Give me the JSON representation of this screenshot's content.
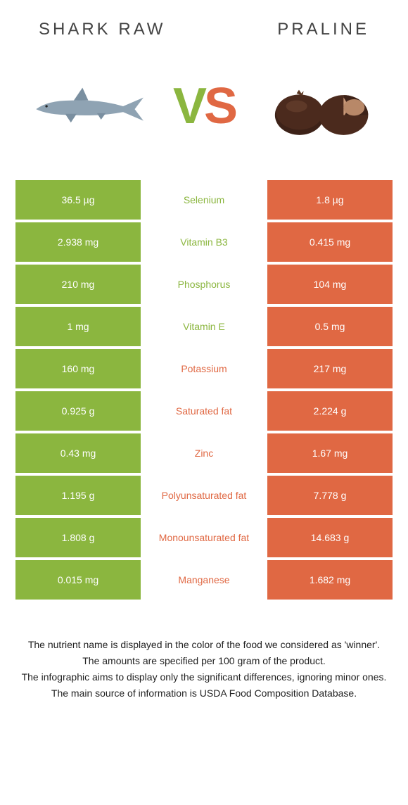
{
  "header": {
    "left_title": "SHARK RAW",
    "right_title": "PRALINE"
  },
  "vs": {
    "v": "V",
    "s": "S"
  },
  "colors": {
    "green": "#8bb63f",
    "orange": "#e06843",
    "text_dark": "#444444"
  },
  "rows": [
    {
      "left": "36.5 µg",
      "mid": "Selenium",
      "right": "1.8 µg",
      "winner": "left"
    },
    {
      "left": "2.938 mg",
      "mid": "Vitamin B3",
      "right": "0.415 mg",
      "winner": "left"
    },
    {
      "left": "210 mg",
      "mid": "Phosphorus",
      "right": "104 mg",
      "winner": "left"
    },
    {
      "left": "1 mg",
      "mid": "Vitamin E",
      "right": "0.5 mg",
      "winner": "left"
    },
    {
      "left": "160 mg",
      "mid": "Potassium",
      "right": "217 mg",
      "winner": "right"
    },
    {
      "left": "0.925 g",
      "mid": "Saturated fat",
      "right": "2.224 g",
      "winner": "right"
    },
    {
      "left": "0.43 mg",
      "mid": "Zinc",
      "right": "1.67 mg",
      "winner": "right"
    },
    {
      "left": "1.195 g",
      "mid": "Polyunsaturated fat",
      "right": "7.778 g",
      "winner": "right"
    },
    {
      "left": "1.808 g",
      "mid": "Monounsaturated fat",
      "right": "14.683 g",
      "winner": "right"
    },
    {
      "left": "0.015 mg",
      "mid": "Manganese",
      "right": "1.682 mg",
      "winner": "right"
    }
  ],
  "footer": {
    "line1": "The nutrient name is displayed in the color of the food we considered as 'winner'.",
    "line2": "The amounts are specified per 100 gram of the product.",
    "line3": "The infographic aims to display only the significant differences, ignoring minor ones.",
    "line4": "The main source of information is USDA Food Composition Database."
  }
}
